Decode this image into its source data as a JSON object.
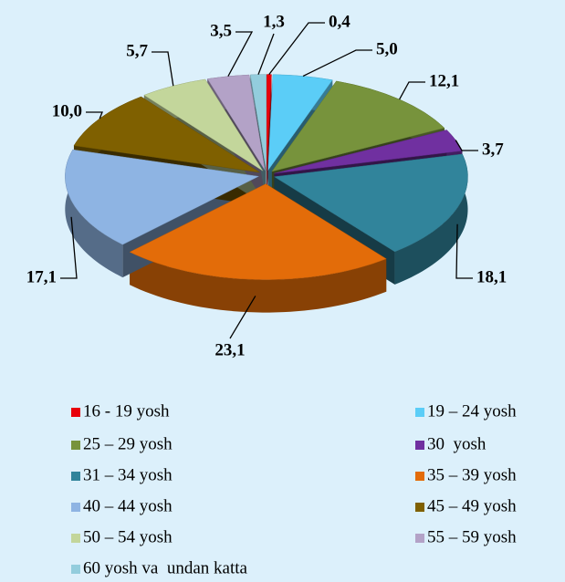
{
  "chart_data": {
    "type": "pie3d",
    "categories": [
      "16 - 19 yosh",
      "19 – 24 yosh",
      "25 – 29 yosh",
      "30  yosh",
      "31 – 34 yosh",
      "35 – 39 yosh",
      "40 – 44 yosh",
      "45 – 49 yosh",
      "50 – 54 yosh",
      "55 – 59 yosh",
      "60 yosh va  undan katta"
    ],
    "values": [
      0.4,
      5.0,
      12.1,
      3.7,
      18.1,
      23.1,
      17.1,
      10.0,
      5.7,
      3.5,
      1.3
    ],
    "value_labels": [
      "0,4",
      "5,0",
      "12,1",
      "3,7",
      "18,1",
      "23,1",
      "17,1",
      "10,0",
      "5,7",
      "3,5",
      "1,3"
    ],
    "colors": [
      "#e8000b",
      "#5bcdf7",
      "#77933c",
      "#7030a0",
      "#31849b",
      "#e36c09",
      "#8eb4e3",
      "#7f6000",
      "#c3d69b",
      "#b3a2c7",
      "#93cddd"
    ]
  }
}
